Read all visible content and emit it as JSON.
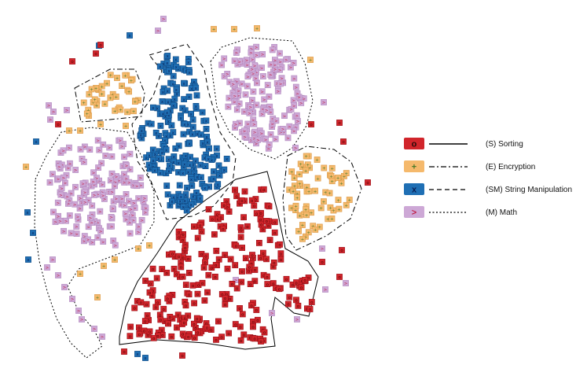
{
  "chart_data": {
    "type": "scatter",
    "title": "",
    "xlabel": "",
    "ylabel": "",
    "grid": false,
    "legend_position": "right",
    "series": [
      {
        "key": "sorting",
        "name": "(S) Sorting",
        "marker": "o",
        "color": "#d1252b",
        "line_style": "solid",
        "count": 250
      },
      {
        "key": "encryption",
        "name": "(E) Encryption",
        "marker": "+",
        "color": "#f5b96c",
        "line_style": "dash-dot",
        "count": 110
      },
      {
        "key": "string",
        "name": "(SM) String Manipulation",
        "marker": "x",
        "color": "#1f6fb4",
        "line_style": "dashed",
        "count": 220
      },
      {
        "key": "math",
        "name": "(M) Math",
        "marker": ">",
        "color": "#cda8d6",
        "line_style": "dotted",
        "count": 330
      }
    ]
  }
}
